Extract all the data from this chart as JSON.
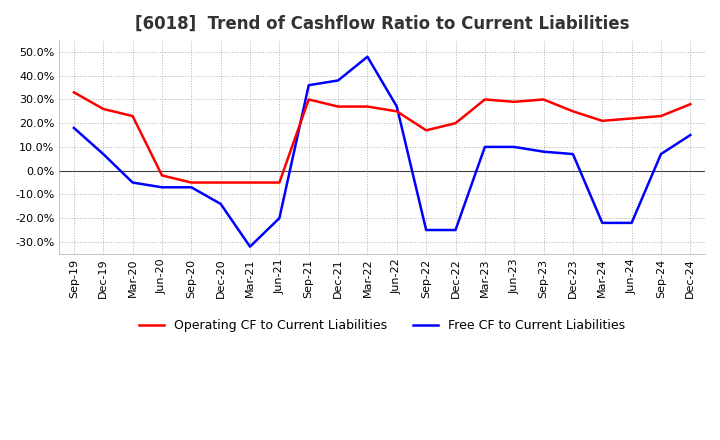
{
  "title": "[6018]  Trend of Cashflow Ratio to Current Liabilities",
  "title_fontsize": 12,
  "x_labels": [
    "Sep-19",
    "Dec-19",
    "Mar-20",
    "Jun-20",
    "Sep-20",
    "Dec-20",
    "Mar-21",
    "Jun-21",
    "Sep-21",
    "Dec-21",
    "Mar-22",
    "Jun-22",
    "Sep-22",
    "Dec-22",
    "Mar-23",
    "Jun-23",
    "Sep-23",
    "Dec-23",
    "Mar-24",
    "Jun-24",
    "Sep-24",
    "Dec-24"
  ],
  "operating_cf": [
    0.33,
    0.26,
    0.23,
    -0.02,
    -0.05,
    -0.05,
    -0.05,
    -0.05,
    0.3,
    0.27,
    0.27,
    0.25,
    0.17,
    0.2,
    0.3,
    0.29,
    0.3,
    0.25,
    0.21,
    0.22,
    0.23,
    0.28
  ],
  "free_cf": [
    0.18,
    0.07,
    -0.05,
    -0.07,
    -0.07,
    -0.14,
    -0.32,
    -0.2,
    0.36,
    0.38,
    0.48,
    0.27,
    -0.25,
    -0.25,
    0.1,
    0.1,
    0.08,
    0.07,
    -0.22,
    -0.22,
    0.07,
    0.15
  ],
  "ylim": [
    -0.35,
    0.55
  ],
  "yticks": [
    -0.3,
    -0.2,
    -0.1,
    0.0,
    0.1,
    0.2,
    0.3,
    0.4,
    0.5
  ],
  "operating_color": "#ff0000",
  "free_color": "#0000ff",
  "legend_operating": "Operating CF to Current Liabilities",
  "legend_free": "Free CF to Current Liabilities",
  "background_color": "#ffffff",
  "grid_color": "#b0b0b0",
  "zero_line_color": "#404040"
}
